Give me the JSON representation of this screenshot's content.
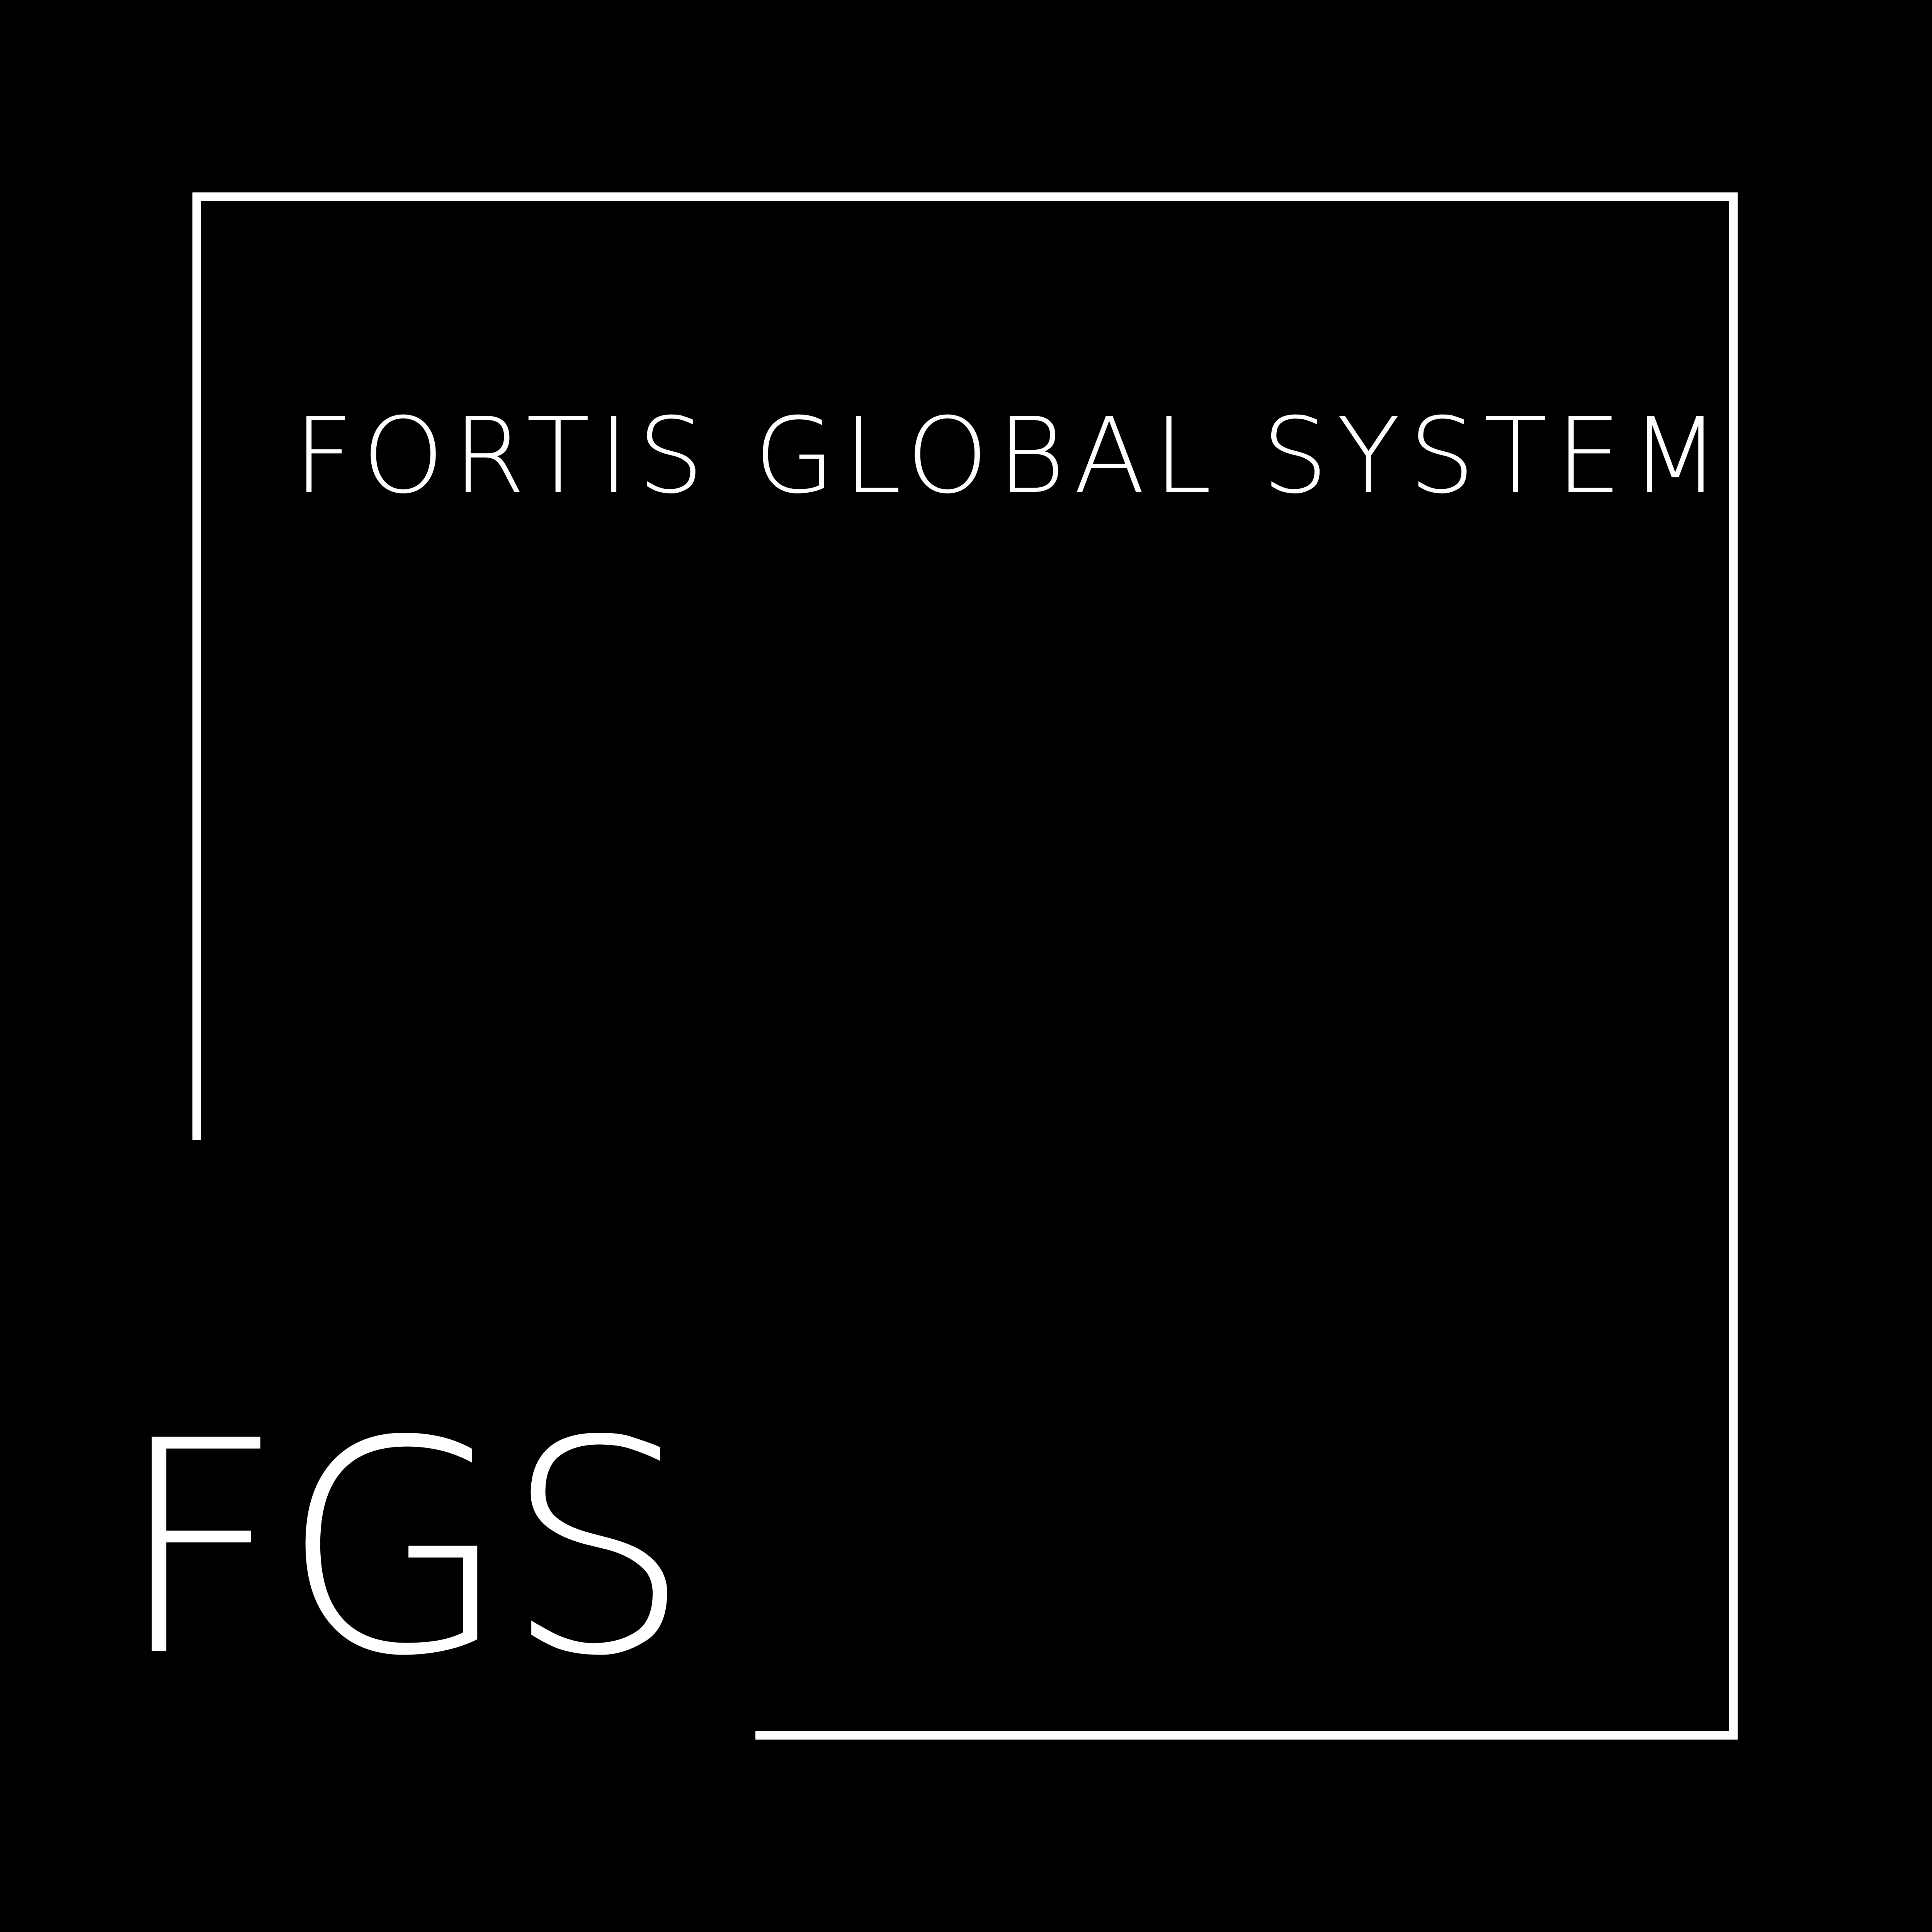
{
  "logo": {
    "title": "FORTIS GLOBAL SYSTEM",
    "abbreviation": "FGS"
  },
  "colors": {
    "background": "#000000",
    "foreground": "#ffffff"
  }
}
